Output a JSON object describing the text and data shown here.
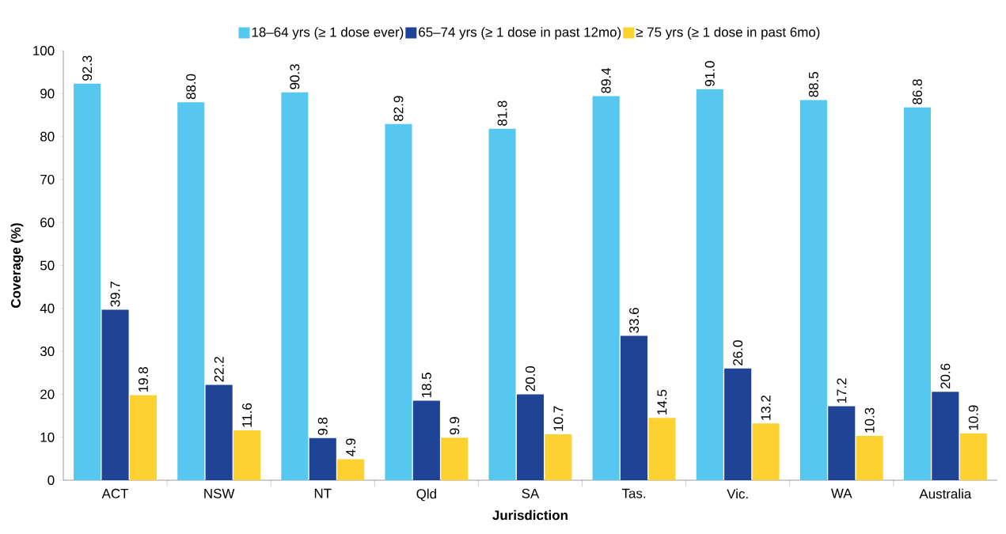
{
  "chart_data": {
    "type": "bar",
    "xlabel": "Jurisdiction",
    "ylabel": "Coverage (%)",
    "categories": [
      "ACT",
      "NSW",
      "NT",
      "Qld",
      "SA",
      "Tas.",
      "Vic.",
      "WA",
      "Australia"
    ],
    "series": [
      {
        "name": "18–64 yrs (≥ 1 dose ever)",
        "color": "#56c8f0",
        "values": [
          92.3,
          88.0,
          90.3,
          82.9,
          81.8,
          89.4,
          91.0,
          88.5,
          86.8
        ],
        "value_labels": [
          "92.3",
          "88.0",
          "90.3",
          "82.9",
          "81.8",
          "89.4",
          "91.0",
          "88.5",
          "86.8"
        ]
      },
      {
        "name": "65–74 yrs (≥ 1 dose in past 12mo)",
        "color": "#1f4496",
        "values": [
          39.7,
          22.2,
          9.8,
          18.5,
          20.0,
          33.6,
          26.0,
          17.2,
          20.6
        ],
        "value_labels": [
          "39.7",
          "22.2",
          "9.8",
          "18.5",
          "20.0",
          "33.6",
          "26.0",
          "17.2",
          "20.6"
        ]
      },
      {
        "name": "≥ 75 yrs (≥ 1 dose in past 6mo)",
        "color": "#fdd130",
        "values": [
          19.8,
          11.6,
          4.9,
          9.9,
          10.7,
          14.5,
          13.2,
          10.3,
          10.9
        ],
        "value_labels": [
          "19.8",
          "11.6",
          "4.9",
          "9.9",
          "10.7",
          "14.5",
          "13.2",
          "10.3",
          "10.9"
        ]
      }
    ],
    "ylim": [
      0,
      100
    ],
    "yticks": [
      0,
      10,
      20,
      30,
      40,
      50,
      60,
      70,
      80,
      90,
      100
    ],
    "legend": "top",
    "grid": false
  }
}
